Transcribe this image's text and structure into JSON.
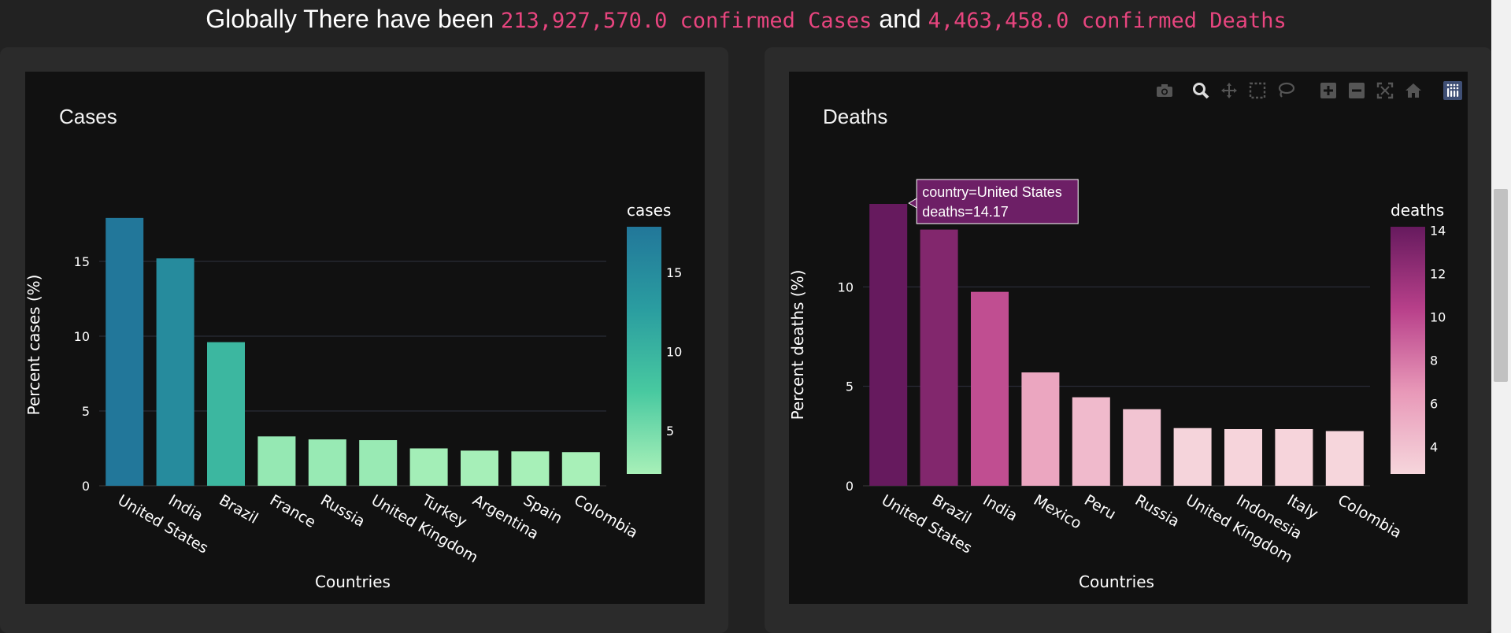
{
  "header": {
    "prefix": "Globally There have been ",
    "cases_text": "213,927,570.0 confirmed Cases",
    "middle": " and ",
    "deaths_text": "4,463,458.0 confirmed Deaths"
  },
  "toolbar": {
    "icons": [
      "camera-icon",
      "zoom-icon",
      "pan-icon",
      "box-select-icon",
      "lasso-select-icon",
      "zoom-in-icon",
      "zoom-out-icon",
      "autoscale-icon",
      "reset-axes-icon",
      "plotly-logo-icon"
    ]
  },
  "chart_data": [
    {
      "type": "bar",
      "title": "Cases",
      "xlabel": "Countries",
      "ylabel": "Percent cases (%)",
      "categories": [
        "United States",
        "India",
        "Brazil",
        "France",
        "Russia",
        "United Kingdom",
        "Turkey",
        "Argentina",
        "Spain",
        "Colombia"
      ],
      "values": [
        17.9,
        15.2,
        9.6,
        3.3,
        3.1,
        3.05,
        2.5,
        2.35,
        2.3,
        2.25
      ],
      "yticks": [
        0,
        5,
        10,
        15
      ],
      "ylim": [
        0,
        18.84
      ],
      "grid": true,
      "colorbar": {
        "title": "cases",
        "ticks": [
          5,
          10,
          15
        ],
        "range": [
          2.25,
          17.9
        ]
      },
      "colorscale": [
        "#a8f0b8",
        "#48c9a0",
        "#2a9da0",
        "#22779a"
      ],
      "tooltip": null
    },
    {
      "type": "bar",
      "title": "Deaths",
      "xlabel": "Countries",
      "ylabel": "Percent deaths (%)",
      "categories": [
        "United States",
        "Brazil",
        "India",
        "Mexico",
        "Peru",
        "Russia",
        "United Kingdom",
        "Indonesia",
        "Italy",
        "Colombia"
      ],
      "values": [
        14.17,
        12.88,
        9.75,
        5.7,
        4.45,
        3.85,
        2.9,
        2.85,
        2.85,
        2.75
      ],
      "yticks": [
        0,
        5,
        10
      ],
      "ylim": [
        0,
        14.17
      ],
      "grid": true,
      "colorbar": {
        "title": "deaths",
        "ticks": [
          4,
          6,
          8,
          10,
          12,
          14
        ],
        "range": [
          2.75,
          14.17
        ]
      },
      "colorscale": [
        "#f6d6dc",
        "#e898b8",
        "#b8408a",
        "#661a5e"
      ],
      "tooltip": {
        "index": 0,
        "line1": "country=United States",
        "line2": "deaths=14.17",
        "color": "#6d1f66"
      }
    }
  ]
}
